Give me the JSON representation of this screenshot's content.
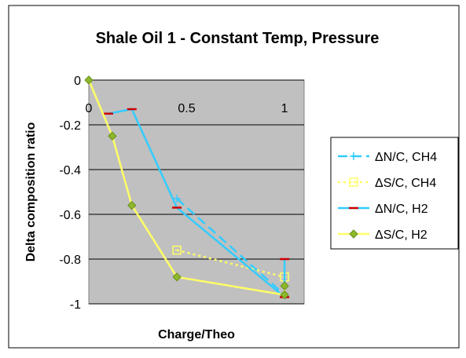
{
  "chart_data": {
    "type": "line",
    "title": "Shale Oil 1 - Constant Temp, Pressure",
    "xlabel": "Charge/Theo",
    "ylabel": "Delta composition ratio",
    "xlim": [
      0,
      1.1
    ],
    "ylim": [
      -1,
      0
    ],
    "x_ticks": [
      {
        "value": 0,
        "label": "0"
      },
      {
        "value": 0.5,
        "label": "0.5"
      },
      {
        "value": 1,
        "label": "1"
      }
    ],
    "y_ticks": [
      {
        "value": 0,
        "label": "0"
      },
      {
        "value": -0.2,
        "label": "-0.2"
      },
      {
        "value": -0.4,
        "label": "-0.4"
      },
      {
        "value": -0.6,
        "label": "-0.6"
      },
      {
        "value": -0.8,
        "label": "-0.8"
      },
      {
        "value": -1,
        "label": "-1"
      }
    ],
    "grid": true,
    "legend_position": "right",
    "plot_background": "#c0c0c0",
    "series": [
      {
        "name": "ΔN/C, CH4",
        "color": "#33ccff",
        "line_style": "dashed",
        "marker": "plus",
        "points": [
          [
            0.45,
            -0.53
          ],
          [
            1.0,
            -0.96
          ]
        ]
      },
      {
        "name": "ΔS/C, CH4",
        "color": "#ffff66",
        "line_style": "dotted",
        "marker": "square",
        "points": [
          [
            0.45,
            -0.76
          ],
          [
            1.0,
            -0.88
          ]
        ]
      },
      {
        "name": "ΔN/C, H2",
        "color": "#33ccff",
        "line_style": "solid",
        "marker": "dash",
        "points": [
          [
            0.1,
            -0.15
          ],
          [
            0.22,
            -0.13
          ],
          [
            0.45,
            -0.57
          ],
          [
            1.0,
            -0.97
          ],
          [
            1.0,
            -0.8
          ]
        ]
      },
      {
        "name": "ΔS/C, H2",
        "color": "#ffff66",
        "line_style": "solid",
        "marker": "diamond",
        "points": [
          [
            0.0,
            0.0
          ],
          [
            0.12,
            -0.25
          ],
          [
            0.22,
            -0.56
          ],
          [
            0.45,
            -0.88
          ],
          [
            1.0,
            -0.96
          ],
          [
            1.0,
            -0.92
          ]
        ]
      }
    ]
  }
}
